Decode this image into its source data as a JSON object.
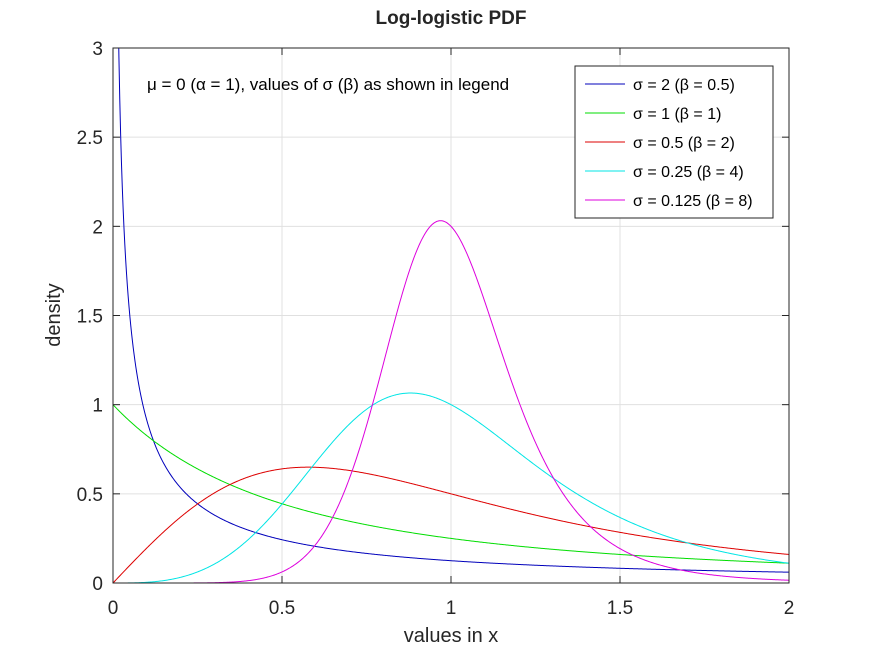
{
  "chart_data": {
    "type": "line",
    "title": "Log-logistic PDF",
    "xlabel": "values in x",
    "ylabel": "density",
    "xlim": [
      0,
      2
    ],
    "ylim": [
      0,
      3
    ],
    "xticks": [
      "0",
      "0.5",
      "1",
      "1.5",
      "2"
    ],
    "yticks": [
      "0",
      "0.5",
      "1",
      "1.5",
      "2",
      "2.5",
      "3"
    ],
    "xtick_values": [
      0,
      0.5,
      1,
      1.5,
      2
    ],
    "ytick_values": [
      0,
      0.5,
      1,
      1.5,
      2,
      2.5,
      3
    ],
    "grid": true,
    "legend_position": "top-right",
    "annotation": "μ = 0 (α = 1), values of σ (β) as shown in legend",
    "series": [
      {
        "name": "σ = 2 (β = 0.5)",
        "color": "#0000bb",
        "alpha": 1,
        "beta": 0.5,
        "x": [
          0.01,
          0.02,
          0.05,
          0.1,
          0.2,
          0.3,
          0.5,
          0.75,
          1,
          1.25,
          1.5,
          1.75,
          2
        ],
        "y": [
          4.13,
          2.61,
          1.23,
          0.66,
          0.33,
          0.22,
          0.24,
          0.154,
          0.125,
          0.105,
          0.092,
          0.081,
          0.073
        ]
      },
      {
        "name": "σ = 1 (β = 1)",
        "color": "#00dd00",
        "alpha": 1,
        "beta": 1,
        "x": [
          0,
          0.25,
          0.5,
          0.75,
          1,
          1.25,
          1.5,
          1.75,
          2
        ],
        "y": [
          1.0,
          0.64,
          0.444,
          0.327,
          0.25,
          0.198,
          0.16,
          0.132,
          0.111
        ]
      },
      {
        "name": "σ = 0.5 (β = 2)",
        "color": "#dd0000",
        "alpha": 1,
        "beta": 2,
        "x": [
          0,
          0.25,
          0.5,
          0.577,
          0.75,
          1,
          1.25,
          1.5,
          1.75,
          2
        ],
        "y": [
          0,
          0.443,
          0.64,
          0.65,
          0.614,
          0.5,
          0.383,
          0.284,
          0.211,
          0.16
        ]
      },
      {
        "name": "σ = 0.25 (β = 4)",
        "color": "#00e5e5",
        "alpha": 1,
        "beta": 4,
        "x": [
          0,
          0.25,
          0.5,
          0.75,
          0.88,
          1,
          1.25,
          1.5,
          1.75,
          2
        ],
        "y": [
          0,
          0.062,
          0.443,
          0.969,
          1.07,
          1.0,
          0.61,
          0.33,
          0.18,
          0.107
        ]
      },
      {
        "name": "σ = 0.125 (β = 8)",
        "color": "#dd00dd",
        "alpha": 1,
        "beta": 8,
        "x": [
          0.3,
          0.5,
          0.75,
          0.97,
          1,
          1.25,
          1.5,
          1.75,
          2
        ],
        "y": [
          0.0,
          0.06,
          0.69,
          2.03,
          2.0,
          0.84,
          0.2,
          0.048,
          0.016
        ]
      }
    ]
  }
}
